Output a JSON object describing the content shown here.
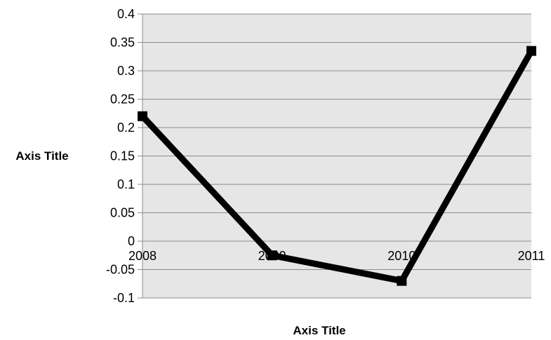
{
  "chart_data": {
    "type": "line",
    "x": [
      "2008",
      "2009",
      "2010",
      "2011"
    ],
    "series": [
      {
        "values": [
          0.22,
          -0.025,
          -0.07,
          0.335
        ]
      }
    ],
    "ylim": [
      -0.1,
      0.4
    ],
    "yticks": [
      "-0.1",
      "-0.05",
      "0",
      "0.05",
      "0.1",
      "0.15",
      "0.2",
      "0.25",
      "0.3",
      "0.35",
      "0.4"
    ],
    "xlabel": "Axis Title",
    "ylabel": "Axis Title",
    "grid": true,
    "legend": "none",
    "colors": {
      "plot_background": "#e6e6e6",
      "gridline": "#8c8c8c",
      "line": "#000000"
    }
  }
}
